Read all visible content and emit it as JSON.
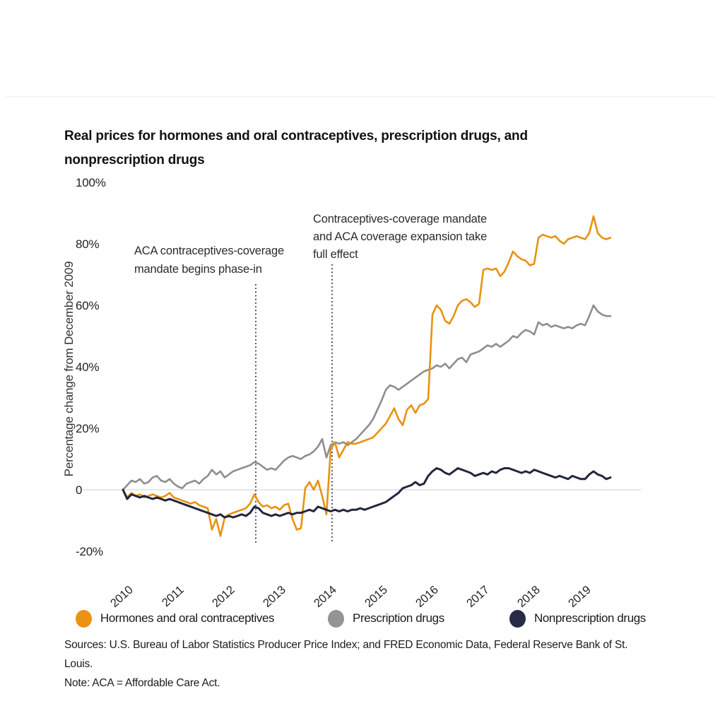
{
  "header": {
    "title": "Real prices for hormones and oral contraceptives, prescription drugs, and nonprescription drugs"
  },
  "chart_data": {
    "type": "line",
    "title": "Real prices for hormones and oral contraceptives, prescription drugs, and nonprescription drugs",
    "xlabel": "",
    "ylabel": "Percentage change from December 2009",
    "x_unit": "month",
    "x_start": "2009-12",
    "x_end": "2019-07",
    "x_tick_labels": [
      "2010",
      "2011",
      "2012",
      "2013",
      "2014",
      "2015",
      "2016",
      "2017",
      "2018",
      "2019"
    ],
    "y_tick_labels": [
      "100%",
      "80%",
      "60%",
      "40%",
      "20%",
      "0",
      "-20%"
    ],
    "y_tick_values": [
      100,
      80,
      60,
      40,
      20,
      0,
      -20
    ],
    "ylim": [
      -22,
      104
    ],
    "grid": "zero-line-only",
    "legend_position": "bottom",
    "zero_line_color": "#d6d6d6",
    "series": [
      {
        "name": "Hormones and oral contraceptives",
        "color": "#e8920e",
        "values": [
          0,
          -2.5,
          -1,
          -2,
          -1.5,
          -2.5,
          -2,
          -1.5,
          -2,
          -2.5,
          -2,
          -1,
          -2.5,
          -3,
          -3.5,
          -4,
          -4.5,
          -4,
          -5,
          -5.5,
          -6,
          -13,
          -9.5,
          -15,
          -9,
          -8,
          -7.5,
          -7,
          -6.5,
          -6,
          -4.5,
          -1.5,
          -4,
          -5.5,
          -5,
          -6,
          -5.5,
          -6.5,
          -5,
          -4.5,
          -9.5,
          -13,
          -12.5,
          0.5,
          2.5,
          0,
          3,
          -2,
          -8,
          13,
          15.5,
          10.5,
          13,
          15.5,
          15,
          15,
          15.5,
          16,
          16.5,
          17,
          18.5,
          20,
          21.5,
          24,
          26.5,
          23,
          21,
          26,
          27.5,
          25,
          27.5,
          28,
          29.5,
          57,
          60,
          58.5,
          55,
          54,
          56.5,
          60,
          61.5,
          62,
          61,
          59.5,
          60.5,
          71.5,
          72,
          71.5,
          72,
          69.5,
          71,
          74,
          77.5,
          76,
          75,
          74.5,
          73,
          73.5,
          82,
          83,
          82.5,
          82,
          82.5,
          81,
          80,
          81.5,
          82,
          82.5,
          82,
          81.5,
          83.5,
          89,
          83.5,
          82,
          81.5,
          82
        ]
      },
      {
        "name": "Prescription drugs",
        "color": "#8e8e8c",
        "values": [
          0,
          1.5,
          3,
          2.5,
          3.5,
          2,
          2.5,
          4,
          4.5,
          3,
          2.5,
          3.5,
          2,
          1,
          0.5,
          2,
          2.5,
          3,
          2,
          3.5,
          4.5,
          6.5,
          5,
          6,
          4,
          5,
          6,
          6.5,
          7,
          7.5,
          8,
          9,
          8.5,
          7.5,
          6.5,
          7,
          6.5,
          8,
          9.5,
          10.5,
          11,
          10.5,
          10,
          11,
          11.5,
          12.5,
          14,
          16.5,
          10.5,
          14.5,
          15.5,
          15,
          15.5,
          14.5,
          15.5,
          16.5,
          18,
          19.5,
          21,
          23,
          26,
          29,
          32.5,
          34,
          33.5,
          32.5,
          33.5,
          34.5,
          35.5,
          36.5,
          37.5,
          38.5,
          39,
          39.5,
          40.5,
          40,
          41,
          39.5,
          41,
          42.5,
          43,
          41.5,
          44,
          44.5,
          45,
          46,
          47,
          46.5,
          47.5,
          46.5,
          47.5,
          48.5,
          50,
          49.5,
          51,
          52,
          51.5,
          50.5,
          54.5,
          53.5,
          54,
          53,
          53.5,
          53,
          52.5,
          53,
          52.5,
          53.5,
          54,
          53.5,
          56.5,
          60,
          58,
          57,
          56.5,
          56.5
        ]
      },
      {
        "name": "Nonprescription drugs",
        "color": "#22263e",
        "values": [
          0,
          -3,
          -1.5,
          -2,
          -2.5,
          -2,
          -2.5,
          -3,
          -2.5,
          -3,
          -3.5,
          -3,
          -3.5,
          -4,
          -4.5,
          -5,
          -5.5,
          -6,
          -6.5,
          -7,
          -7.5,
          -8,
          -8.5,
          -8,
          -9,
          -8.5,
          -9,
          -8.5,
          -8,
          -8.5,
          -7.5,
          -5.5,
          -6,
          -7.5,
          -8,
          -8.5,
          -8,
          -8.5,
          -8,
          -7.5,
          -8,
          -7.5,
          -7.5,
          -7,
          -6.5,
          -7,
          -5.5,
          -6,
          -6.5,
          -7,
          -6.5,
          -7,
          -6.5,
          -7,
          -6.5,
          -6.5,
          -6,
          -6.5,
          -6,
          -5.5,
          -5,
          -4.5,
          -4,
          -3,
          -2,
          -1,
          0.5,
          1,
          1.5,
          2.5,
          1.5,
          2,
          4.5,
          6,
          7,
          6.5,
          5.5,
          5,
          6,
          7,
          6.5,
          6,
          5.5,
          4.5,
          5,
          5.5,
          5,
          6,
          5.5,
          6.5,
          7,
          7,
          6.5,
          6,
          5.5,
          6,
          5.5,
          6.5,
          6,
          5.5,
          5,
          4.5,
          4,
          4.5,
          4,
          3.5,
          4.5,
          4,
          3.5,
          3.5,
          5,
          6,
          5,
          4.5,
          3.5,
          4
        ]
      }
    ],
    "annotations": [
      {
        "lines": [
          "ACA contraceptives-coverage",
          "mandate begins phase-in"
        ],
        "x_month_index": 31,
        "x_date": "2012-07",
        "style": "dotted-vertical-line"
      },
      {
        "lines": [
          "Contraceptives-coverage mandate",
          "and ACA coverage expansion take",
          "full effect"
        ],
        "x_month_index": 49,
        "x_date": "2014-01",
        "style": "dotted-vertical-line"
      }
    ]
  },
  "legend": {
    "items": [
      {
        "label": "Hormones and oral contraceptives",
        "color": "#ec9213"
      },
      {
        "label": "Prescription drugs",
        "color": "#949492"
      },
      {
        "label": "Nonprescription drugs",
        "color": "#272b45"
      }
    ]
  },
  "footer": {
    "sources": "Sources: U.S. Bureau of Labor Statistics Producer Price Index; and FRED Economic Data, Federal Reserve Bank of St. Louis.",
    "note": "Note: ACA = Affordable Care Act."
  }
}
